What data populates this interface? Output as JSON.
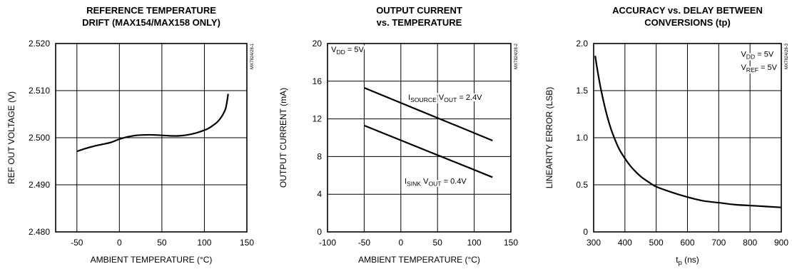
{
  "chart_data": [
    {
      "type": "line",
      "title": [
        "REFERENCE TEMPERATURE",
        "DRIFT (MAX154/MAX158 ONLY)"
      ],
      "xlabel": "AMBIENT TEMPERATURE (°C)",
      "ylabel": "REF OUT VOLTAGE (V)",
      "xlim": [
        -75,
        150
      ],
      "ylim": [
        2.48,
        2.52
      ],
      "xticks": [
        -50,
        0,
        50,
        100,
        150
      ],
      "xtick_labels": [
        "-50",
        "0",
        "50",
        "100",
        "150"
      ],
      "yticks": [
        2.48,
        2.49,
        2.5,
        2.51,
        2.52
      ],
      "ytick_labels": [
        "2.480",
        "2.490",
        "2.500",
        "2.510",
        "2.520"
      ],
      "grid": true,
      "code": "MX7824/28-1",
      "series": [
        {
          "x": [
            -50,
            -40,
            -30,
            -20,
            -10,
            0,
            10,
            20,
            30,
            40,
            50,
            60,
            70,
            80,
            90,
            100,
            105,
            110,
            115,
            120,
            125,
            128
          ],
          "y": [
            2.4971,
            2.4977,
            2.4982,
            2.4986,
            2.499,
            2.4997,
            2.5002,
            2.5005,
            2.5006,
            2.5006,
            2.5005,
            2.5004,
            2.5004,
            2.5006,
            2.501,
            2.5016,
            2.502,
            2.5026,
            2.5033,
            2.5044,
            2.5062,
            2.5093
          ]
        }
      ],
      "annotations": []
    },
    {
      "type": "line",
      "title": [
        "OUTPUT CURRENT",
        "vs. TEMPERATURE"
      ],
      "xlabel": "AMBIENT TEMPERATURE (°C)",
      "ylabel": "OUTPUT CURRENT (mA)",
      "xlim": [
        -100,
        150
      ],
      "ylim": [
        0,
        20
      ],
      "xticks": [
        -100,
        -50,
        0,
        50,
        100,
        150
      ],
      "xtick_labels": [
        "-100",
        "-50",
        "0",
        "50",
        "100",
        "150"
      ],
      "yticks": [
        0,
        4,
        8,
        12,
        16,
        20
      ],
      "ytick_labels": [
        "0",
        "4",
        "8",
        "12",
        "16",
        "20"
      ],
      "grid": true,
      "code": "MX7824/28-2",
      "series": [
        {
          "x": [
            -50,
            125
          ],
          "y": [
            15.3,
            9.7
          ]
        },
        {
          "x": [
            -50,
            125
          ],
          "y": [
            11.3,
            5.8
          ]
        }
      ],
      "annotations": [
        {
          "parts": [
            [
              "V",
              ""
            ],
            [
              "DD",
              "sub"
            ],
            [
              " = 5V",
              ""
            ]
          ],
          "x": -95,
          "y": 19.1,
          "anchor": "start"
        },
        {
          "parts": [
            [
              "I",
              ""
            ],
            [
              "SOURCE",
              "sub"
            ],
            [
              " V",
              ""
            ],
            [
              "OUT",
              "sub"
            ],
            [
              " = 2.4V",
              ""
            ]
          ],
          "x": 10,
          "y": 14.0,
          "anchor": "start"
        },
        {
          "parts": [
            [
              "I",
              ""
            ],
            [
              "SINK",
              "sub"
            ],
            [
              " V",
              ""
            ],
            [
              "OUT",
              "sub"
            ],
            [
              " = 0.4V",
              ""
            ]
          ],
          "x": 5,
          "y": 5.1,
          "anchor": "start"
        }
      ]
    },
    {
      "type": "line",
      "title": [
        "ACCURACY vs. DELAY BETWEEN",
        "CONVERSIONS (tp)"
      ],
      "xlabel_parts": [
        [
          "t",
          ""
        ],
        [
          "p",
          "sub"
        ],
        [
          " (ns)",
          ""
        ]
      ],
      "ylabel": "LINEARITY ERROR (LSB)",
      "xlim": [
        300,
        900
      ],
      "ylim": [
        0,
        2.0
      ],
      "xticks": [
        300,
        400,
        500,
        600,
        700,
        800,
        900
      ],
      "xtick_labels": [
        "300",
        "400",
        "500",
        "600",
        "700",
        "800",
        "900"
      ],
      "yticks": [
        0,
        0.5,
        1.0,
        1.5,
        2.0
      ],
      "ytick_labels": [
        "0",
        "0.5",
        "1.0",
        "1.5",
        "2.0"
      ],
      "grid": true,
      "code": "MX7824/28-3",
      "series": [
        {
          "x": [
            305,
            310,
            320,
            330,
            340,
            350,
            360,
            380,
            400,
            420,
            450,
            480,
            500,
            550,
            600,
            650,
            700,
            750,
            800,
            850,
            900
          ],
          "y": [
            1.87,
            1.76,
            1.57,
            1.41,
            1.27,
            1.15,
            1.05,
            0.89,
            0.78,
            0.69,
            0.59,
            0.52,
            0.48,
            0.42,
            0.37,
            0.33,
            0.31,
            0.29,
            0.28,
            0.27,
            0.26
          ]
        }
      ],
      "annotations": [
        {
          "parts": [
            [
              "V",
              ""
            ],
            [
              "DD",
              "sub"
            ],
            [
              " = 5V",
              ""
            ]
          ],
          "x": 771,
          "y": 1.86,
          "anchor": "start"
        },
        {
          "parts": [
            [
              "V",
              ""
            ],
            [
              "REF",
              "sub"
            ],
            [
              " = 5V",
              ""
            ]
          ],
          "x": 771,
          "y": 1.72,
          "anchor": "start"
        }
      ]
    }
  ]
}
